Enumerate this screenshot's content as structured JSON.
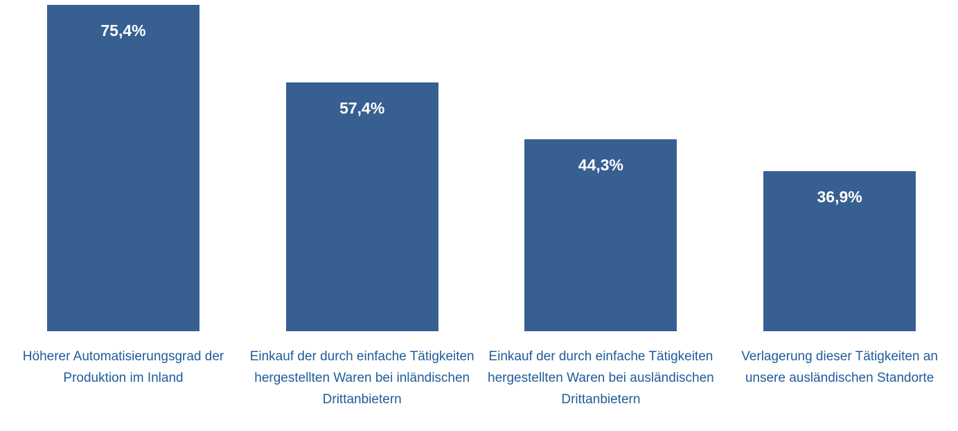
{
  "chart_data": {
    "type": "bar",
    "categories": [
      "Höherer Automatisierungsgrad der Produktion im Inland",
      "Einkauf der durch einfache Tätigkeiten hergestellten Waren bei inländischen Drittanbietern",
      "Einkauf der durch einfache Tätigkeiten hergestellten Waren bei ausländischen Drittanbietern",
      "Verlagerung dieser Tätigkeiten an unsere ausländischen Standorte"
    ],
    "values": [
      75.4,
      57.4,
      44.3,
      36.9
    ],
    "value_labels": [
      "75,4%",
      "57,4%",
      "44,3%",
      "36,9%"
    ],
    "color": "#375f91"
  }
}
